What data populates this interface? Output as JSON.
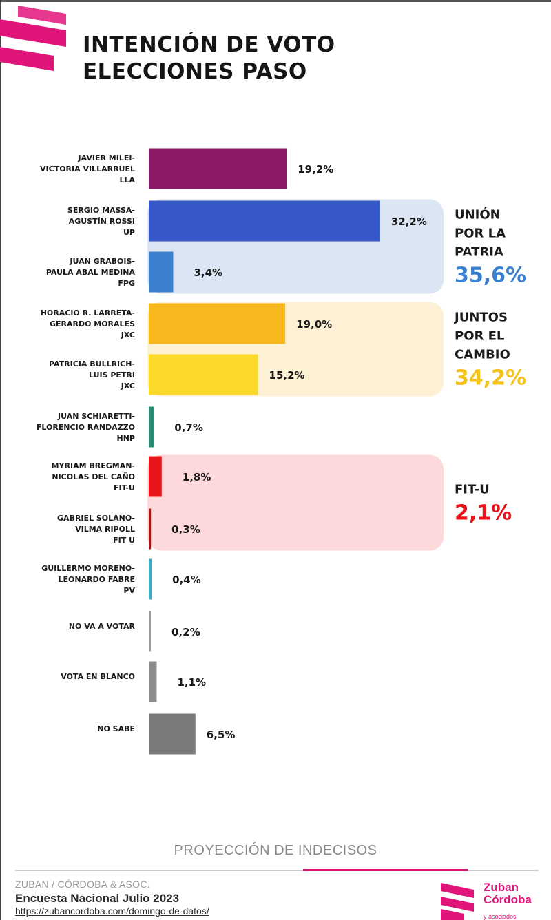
{
  "header": {
    "title_line1": "INTENCIÓN DE VOTO",
    "title_line2": "ELECCIONES PASO"
  },
  "chart_data": {
    "type": "bar",
    "orientation": "horizontal",
    "title": "INTENCIÓN DE VOTO ELECCIONES PASO",
    "xlim": [
      0,
      35
    ],
    "grid": false,
    "categories": [
      [
        "JAVIER MILEI-",
        "VICTORIA VILLARRUEL",
        "LLA"
      ],
      [
        "SERGIO MASSA-",
        "AGUSTÍN ROSSI",
        "UP"
      ],
      [
        "JUAN GRABOIS-",
        "PAULA ABAL MEDINA",
        "FPG"
      ],
      [
        "HORACIO R. LARRETA-",
        "GERARDO MORALES",
        "JXC"
      ],
      [
        "PATRICIA BULLRICH-",
        "LUIS PETRI",
        "JXC"
      ],
      [
        "JUAN SCHIARETTI-",
        "FLORENCIO RANDAZZO",
        "HNP"
      ],
      [
        "MYRIAM BREGMAN-",
        "NICOLAS DEL CAÑO",
        "FIT-U"
      ],
      [
        "GABRIEL SOLANO-",
        "VILMA RIPOLL",
        "FIT U"
      ],
      [
        "GUILLERMO MORENO-",
        "LEONARDO FABRE",
        "PV"
      ],
      [
        "NO VA A VOTAR"
      ],
      [
        "VOTA EN BLANCO"
      ],
      [
        "NO SABE"
      ]
    ],
    "values": [
      19.2,
      32.2,
      3.4,
      19.0,
      15.2,
      0.7,
      1.8,
      0.3,
      0.4,
      0.2,
      1.1,
      6.5
    ],
    "value_labels": [
      "19,2%",
      "32,2%",
      "3,4%",
      "19,0%",
      "15,2%",
      "0,7%",
      "1,8%",
      "0,3%",
      "0,4%",
      "0,2%",
      "1,1%",
      "6,5%"
    ],
    "colors": [
      "#8b1a66",
      "#3658c8",
      "#3b7fce",
      "#f6b81c",
      "#fbd92a",
      "#2a8a74",
      "#e8141c",
      "#a01818",
      "#3ba9c8",
      "#9a9a9a",
      "#8c8c8c",
      "#7a7a7a"
    ],
    "groups": [
      {
        "name_lines": [
          "UNIÓN",
          "POR LA",
          "PATRIA"
        ],
        "total": "35,6%",
        "color": "#3b80d0",
        "bg": "#dbe5f3",
        "members": [
          1,
          2
        ]
      },
      {
        "name_lines": [
          "JUNTOS",
          "POR EL",
          "CAMBIO"
        ],
        "total": "34,2%",
        "color": "#f6c21d",
        "bg": "#fdf1d5",
        "members": [
          3,
          4
        ]
      },
      {
        "name_lines": [
          "FIT-U"
        ],
        "total": "2,1%",
        "color": "#e8141c",
        "bg": "#fdd9dc",
        "members": [
          6,
          7
        ]
      }
    ]
  },
  "footer": {
    "projection": "PROYECCIÓN DE INDECISOS",
    "org": "ZUBAN / CÓRDOBA & ASOC.",
    "survey": "Encuesta Nacional Julio 2023",
    "url": "https://zubancordoba.com/domingo-de-datos/",
    "brand_line1": "Zuban",
    "brand_line2": "Córdoba",
    "brand_sub": "y asociados",
    "brand_color": "#e0157a"
  }
}
